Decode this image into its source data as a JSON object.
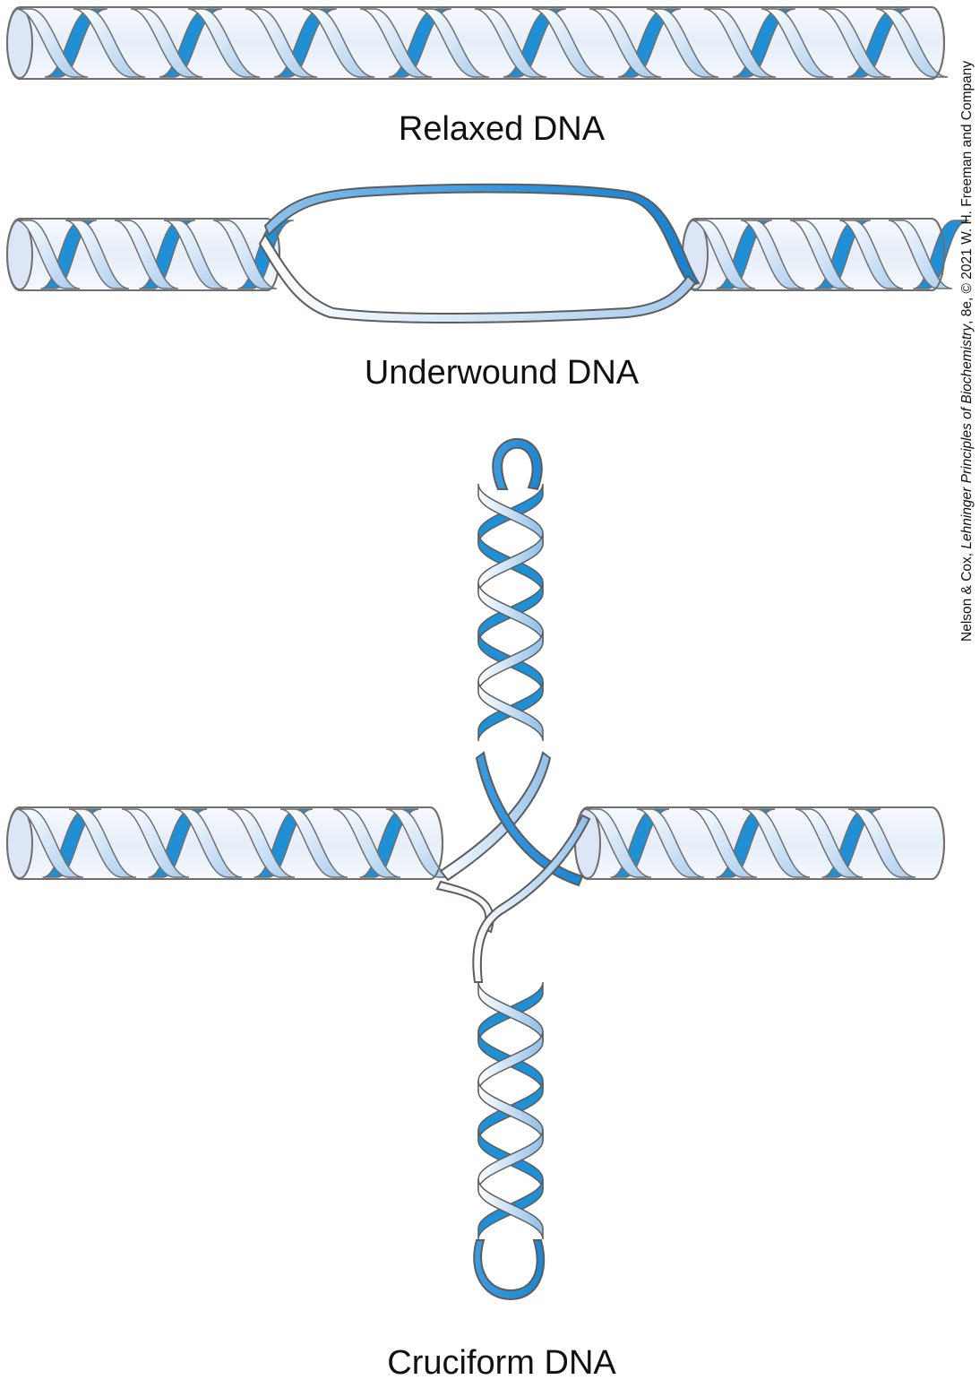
{
  "captions": {
    "relaxed": "Relaxed DNA",
    "underwound": "Underwound DNA",
    "cruciform": "Cruciform DNA"
  },
  "credit": {
    "prefix": "Nelson & Cox, ",
    "title": "Lehninger Principles of Biochemistry",
    "suffix": ", 8e, © 2021 W. H. Freeman and Company"
  },
  "colors": {
    "strand_blue": "#1f8fd6",
    "strand_light": "#e8f1fa",
    "tube_fill": "#eef3fb",
    "outline": "#6f6f6f"
  }
}
